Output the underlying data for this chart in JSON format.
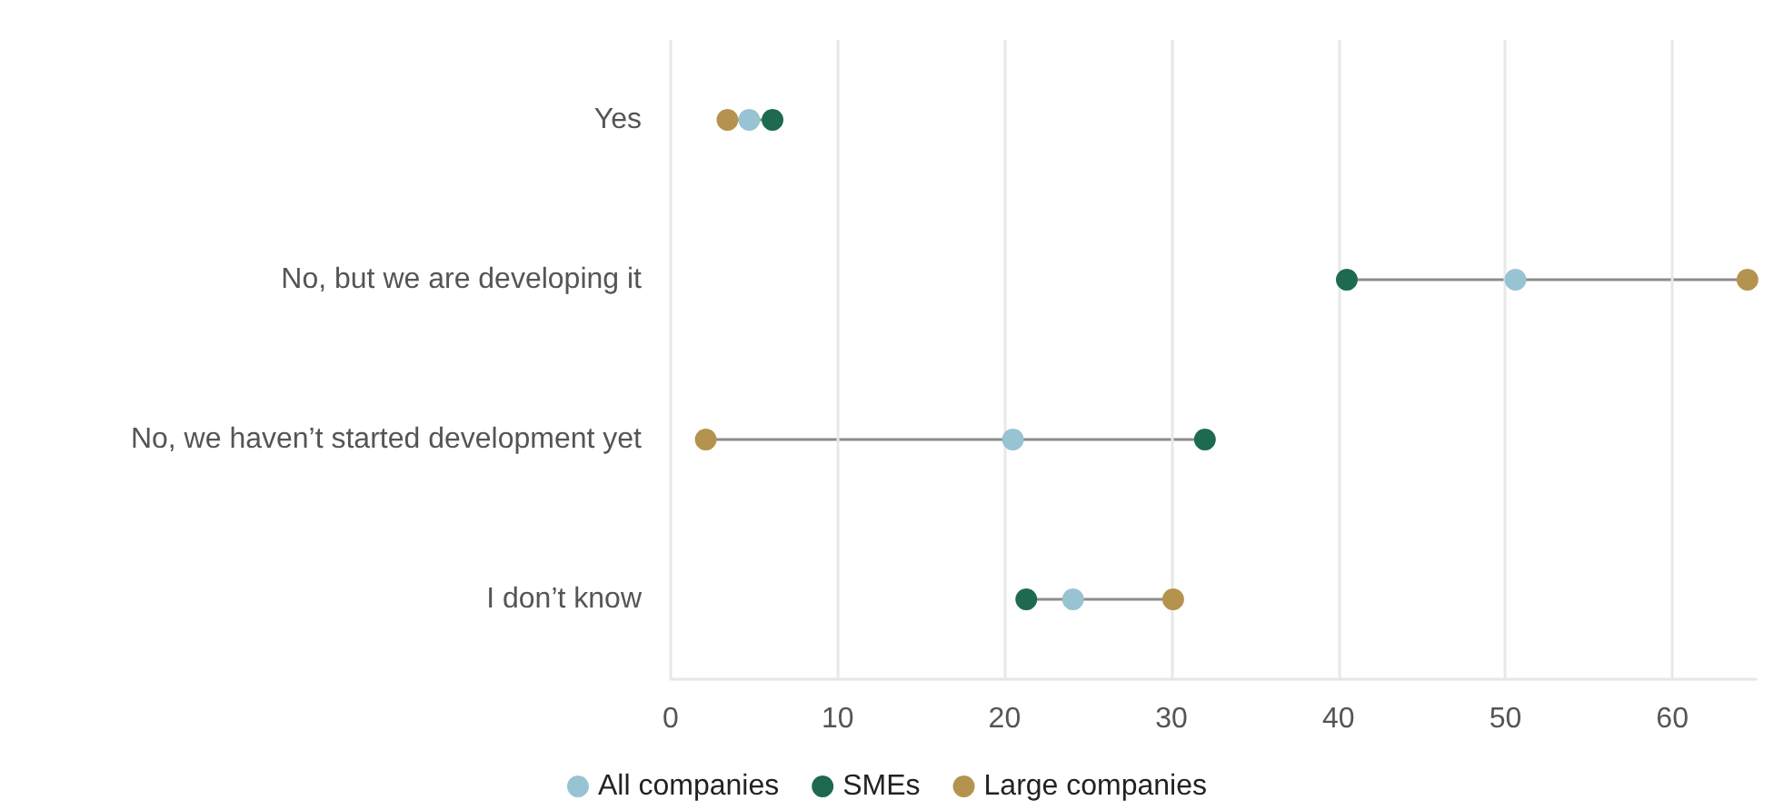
{
  "chart_data": {
    "type": "scatter",
    "orientation": "horizontal",
    "categories": [
      "Yes",
      "No, but we are developing it",
      "No, we haven’t started development yet",
      "I don’t know"
    ],
    "series": [
      {
        "name": "All companies",
        "color": "#98c3d2",
        "values": [
          4.7,
          50.6,
          20.5,
          24.1
        ]
      },
      {
        "name": "SMEs",
        "color": "#1d6a50",
        "values": [
          6.1,
          40.5,
          32.0,
          21.3
        ]
      },
      {
        "name": "Large companies",
        "color": "#b4934f",
        "values": [
          3.4,
          64.5,
          2.1,
          30.1
        ]
      }
    ],
    "xlim": [
      0,
      65
    ],
    "xticks": [
      0,
      10,
      20,
      30,
      40,
      50,
      60
    ],
    "grid": "x",
    "legend": "bottom",
    "marker": "circle"
  }
}
